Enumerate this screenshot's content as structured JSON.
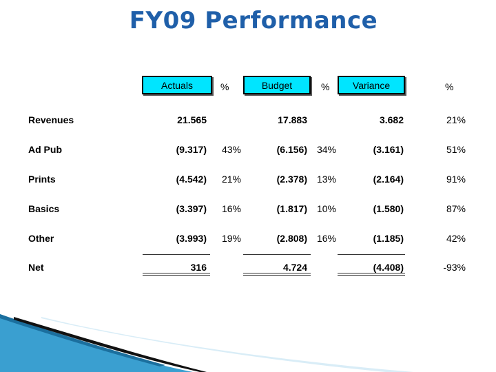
{
  "slide": {
    "title": "FY09 Performance"
  },
  "table": {
    "headers": {
      "actuals": "Actuals",
      "pct1": "%",
      "budget": "Budget",
      "pct2": "%",
      "variance": "Variance",
      "pct3": "%"
    },
    "rows": [
      {
        "label": "Revenues",
        "actuals": "21.565",
        "actuals_pct": "",
        "budget": "17.883",
        "budget_pct": "",
        "variance": "3.682",
        "variance_pct": "21%"
      },
      {
        "label": "Ad Pub",
        "actuals": "(9.317)",
        "actuals_pct": "43%",
        "budget": "(6.156)",
        "budget_pct": "34%",
        "variance": "(3.161)",
        "variance_pct": "51%"
      },
      {
        "label": "Prints",
        "actuals": "(4.542)",
        "actuals_pct": "21%",
        "budget": "(2.378)",
        "budget_pct": "13%",
        "variance": "(2.164)",
        "variance_pct": "91%"
      },
      {
        "label": "Basics",
        "actuals": "(3.397)",
        "actuals_pct": "16%",
        "budget": "(1.817)",
        "budget_pct": "10%",
        "variance": "(1.580)",
        "variance_pct": "87%"
      },
      {
        "label": "Other",
        "actuals": "(3.993)",
        "actuals_pct": "19%",
        "budget": "(2.808)",
        "budget_pct": "16%",
        "variance": "(1.185)",
        "variance_pct": "42%"
      },
      {
        "label": "Net",
        "actuals": "316",
        "actuals_pct": "",
        "budget": "4.724",
        "budget_pct": "",
        "variance": "(4.408)",
        "variance_pct": "-93%"
      }
    ]
  },
  "colors": {
    "title": "#1f5fa9",
    "header_fill": "#00e5ff",
    "deco_blue": "#3a9fd0",
    "deco_dark": "#111111"
  }
}
